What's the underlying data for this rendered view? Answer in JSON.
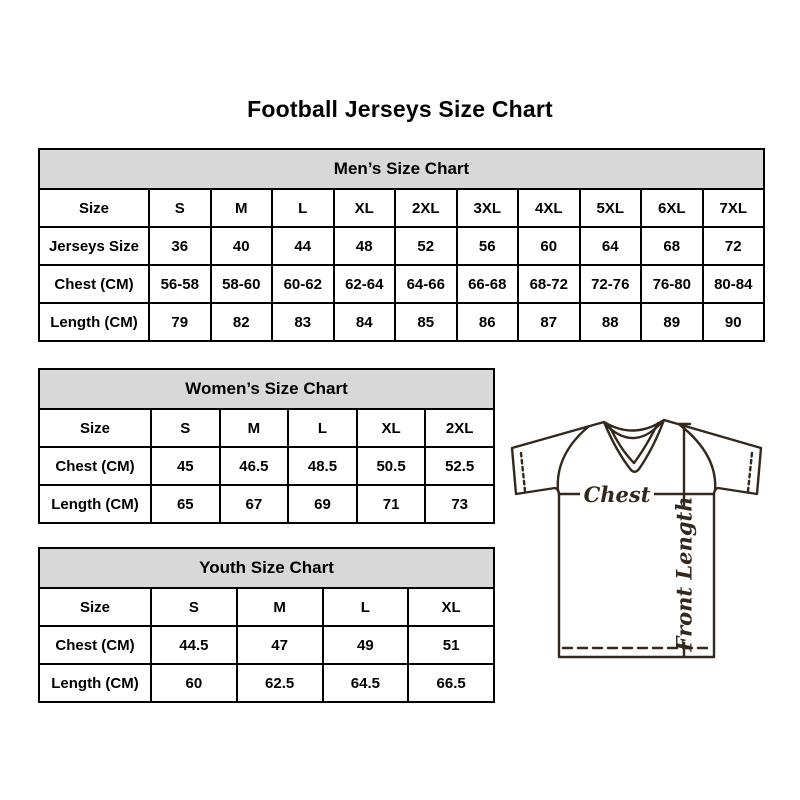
{
  "page": {
    "title": "Football Jerseys Size Chart"
  },
  "chart_data": [
    {
      "type": "table",
      "title": "Men’s Size Chart",
      "rows": [
        {
          "label": "Size",
          "values": [
            "S",
            "M",
            "L",
            "XL",
            "2XL",
            "3XL",
            "4XL",
            "5XL",
            "6XL",
            "7XL"
          ]
        },
        {
          "label": "Jerseys Size",
          "values": [
            "36",
            "40",
            "44",
            "48",
            "52",
            "56",
            "60",
            "64",
            "68",
            "72"
          ]
        },
        {
          "label": "Chest (CM)",
          "values": [
            "56-58",
            "58-60",
            "60-62",
            "62-64",
            "64-66",
            "66-68",
            "68-72",
            "72-76",
            "76-80",
            "80-84"
          ]
        },
        {
          "label": "Length (CM)",
          "values": [
            "79",
            "82",
            "83",
            "84",
            "85",
            "86",
            "87",
            "88",
            "89",
            "90"
          ]
        }
      ]
    },
    {
      "type": "table",
      "title": "Women’s Size Chart",
      "rows": [
        {
          "label": "Size",
          "values": [
            "S",
            "M",
            "L",
            "XL",
            "2XL"
          ]
        },
        {
          "label": "Chest (CM)",
          "values": [
            "45",
            "46.5",
            "48.5",
            "50.5",
            "52.5"
          ]
        },
        {
          "label": "Length (CM)",
          "values": [
            "65",
            "67",
            "69",
            "71",
            "73"
          ]
        }
      ]
    },
    {
      "type": "table",
      "title": "Youth Size Chart",
      "rows": [
        {
          "label": "Size",
          "values": [
            "S",
            "M",
            "L",
            "XL"
          ]
        },
        {
          "label": "Chest (CM)",
          "values": [
            "44.5",
            "47",
            "49",
            "51"
          ]
        },
        {
          "label": "Length (CM)",
          "values": [
            "60",
            "62.5",
            "64.5",
            "66.5"
          ]
        }
      ]
    }
  ],
  "diagram": {
    "chest_label": "Chest",
    "front_length_label": "Front Length"
  },
  "colors": {
    "table_header_bg": "#d8d8d8",
    "table_border": "#000000",
    "jersey_line": "#33281e",
    "text": "#000000",
    "background": "#ffffff"
  }
}
